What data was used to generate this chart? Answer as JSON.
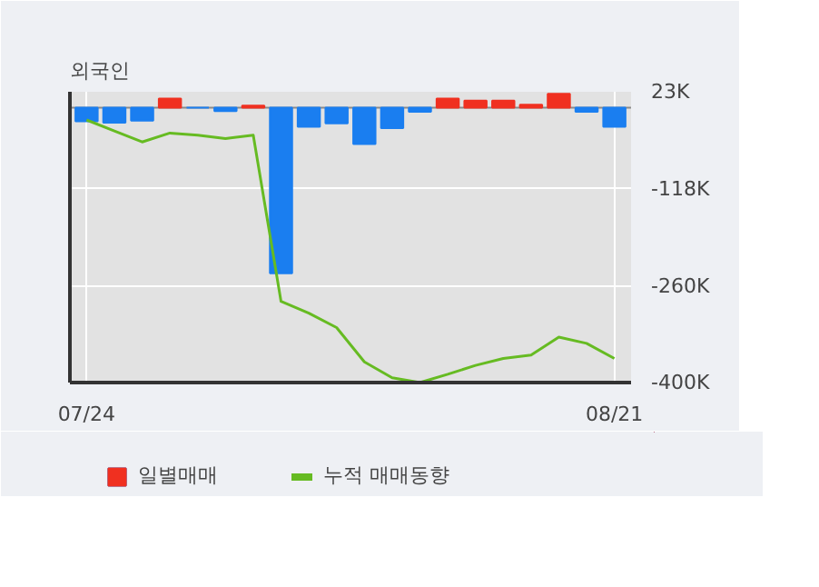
{
  "chart_data": {
    "type": "bar",
    "title": "외국인",
    "categories": [
      "07/24",
      null,
      null,
      null,
      null,
      null,
      null,
      null,
      null,
      null,
      null,
      null,
      null,
      null,
      null,
      null,
      null,
      null,
      null,
      "08/21"
    ],
    "series": [
      {
        "name": "일별매매",
        "colors": [
          "#1a7ef0",
          "#1a7ef0",
          "#1a7ef0",
          "#f03020",
          "#1a7ef0",
          "#1a7ef0",
          "#f03020",
          "#1a7ef0",
          "#1a7ef0",
          "#1a7ef0",
          "#1a7ef0",
          "#1a7ef0",
          "#1a7ef0",
          "#f03020",
          "#f03020",
          "#f03020",
          "#f03020",
          "#f03020",
          "#1a7ef0",
          "#1a7ef0"
        ],
        "values": [
          -20,
          -22,
          -19,
          13,
          0,
          -5,
          3,
          -241,
          -28,
          -23,
          -53,
          -30,
          -6,
          13,
          10,
          10,
          4,
          20,
          -6,
          -28
        ]
      },
      {
        "name": "누적 매매동향",
        "type": "line",
        "color": "#66bb22",
        "values": [
          -18,
          -34,
          -50,
          -37,
          -40,
          -45,
          -40,
          -282,
          -299,
          -320,
          -370,
          -393,
          -400,
          -388,
          -375,
          -365,
          -360,
          -334,
          -343,
          -365
        ]
      }
    ],
    "ylim": [
      -400,
      23
    ],
    "yticks": [
      {
        "value": 23,
        "label": "23K"
      },
      {
        "value": -118,
        "label": "-118K"
      },
      {
        "value": -260,
        "label": "-260K"
      },
      {
        "value": -400,
        "label": "-400K"
      }
    ],
    "grid": true,
    "legend": "bottom"
  }
}
